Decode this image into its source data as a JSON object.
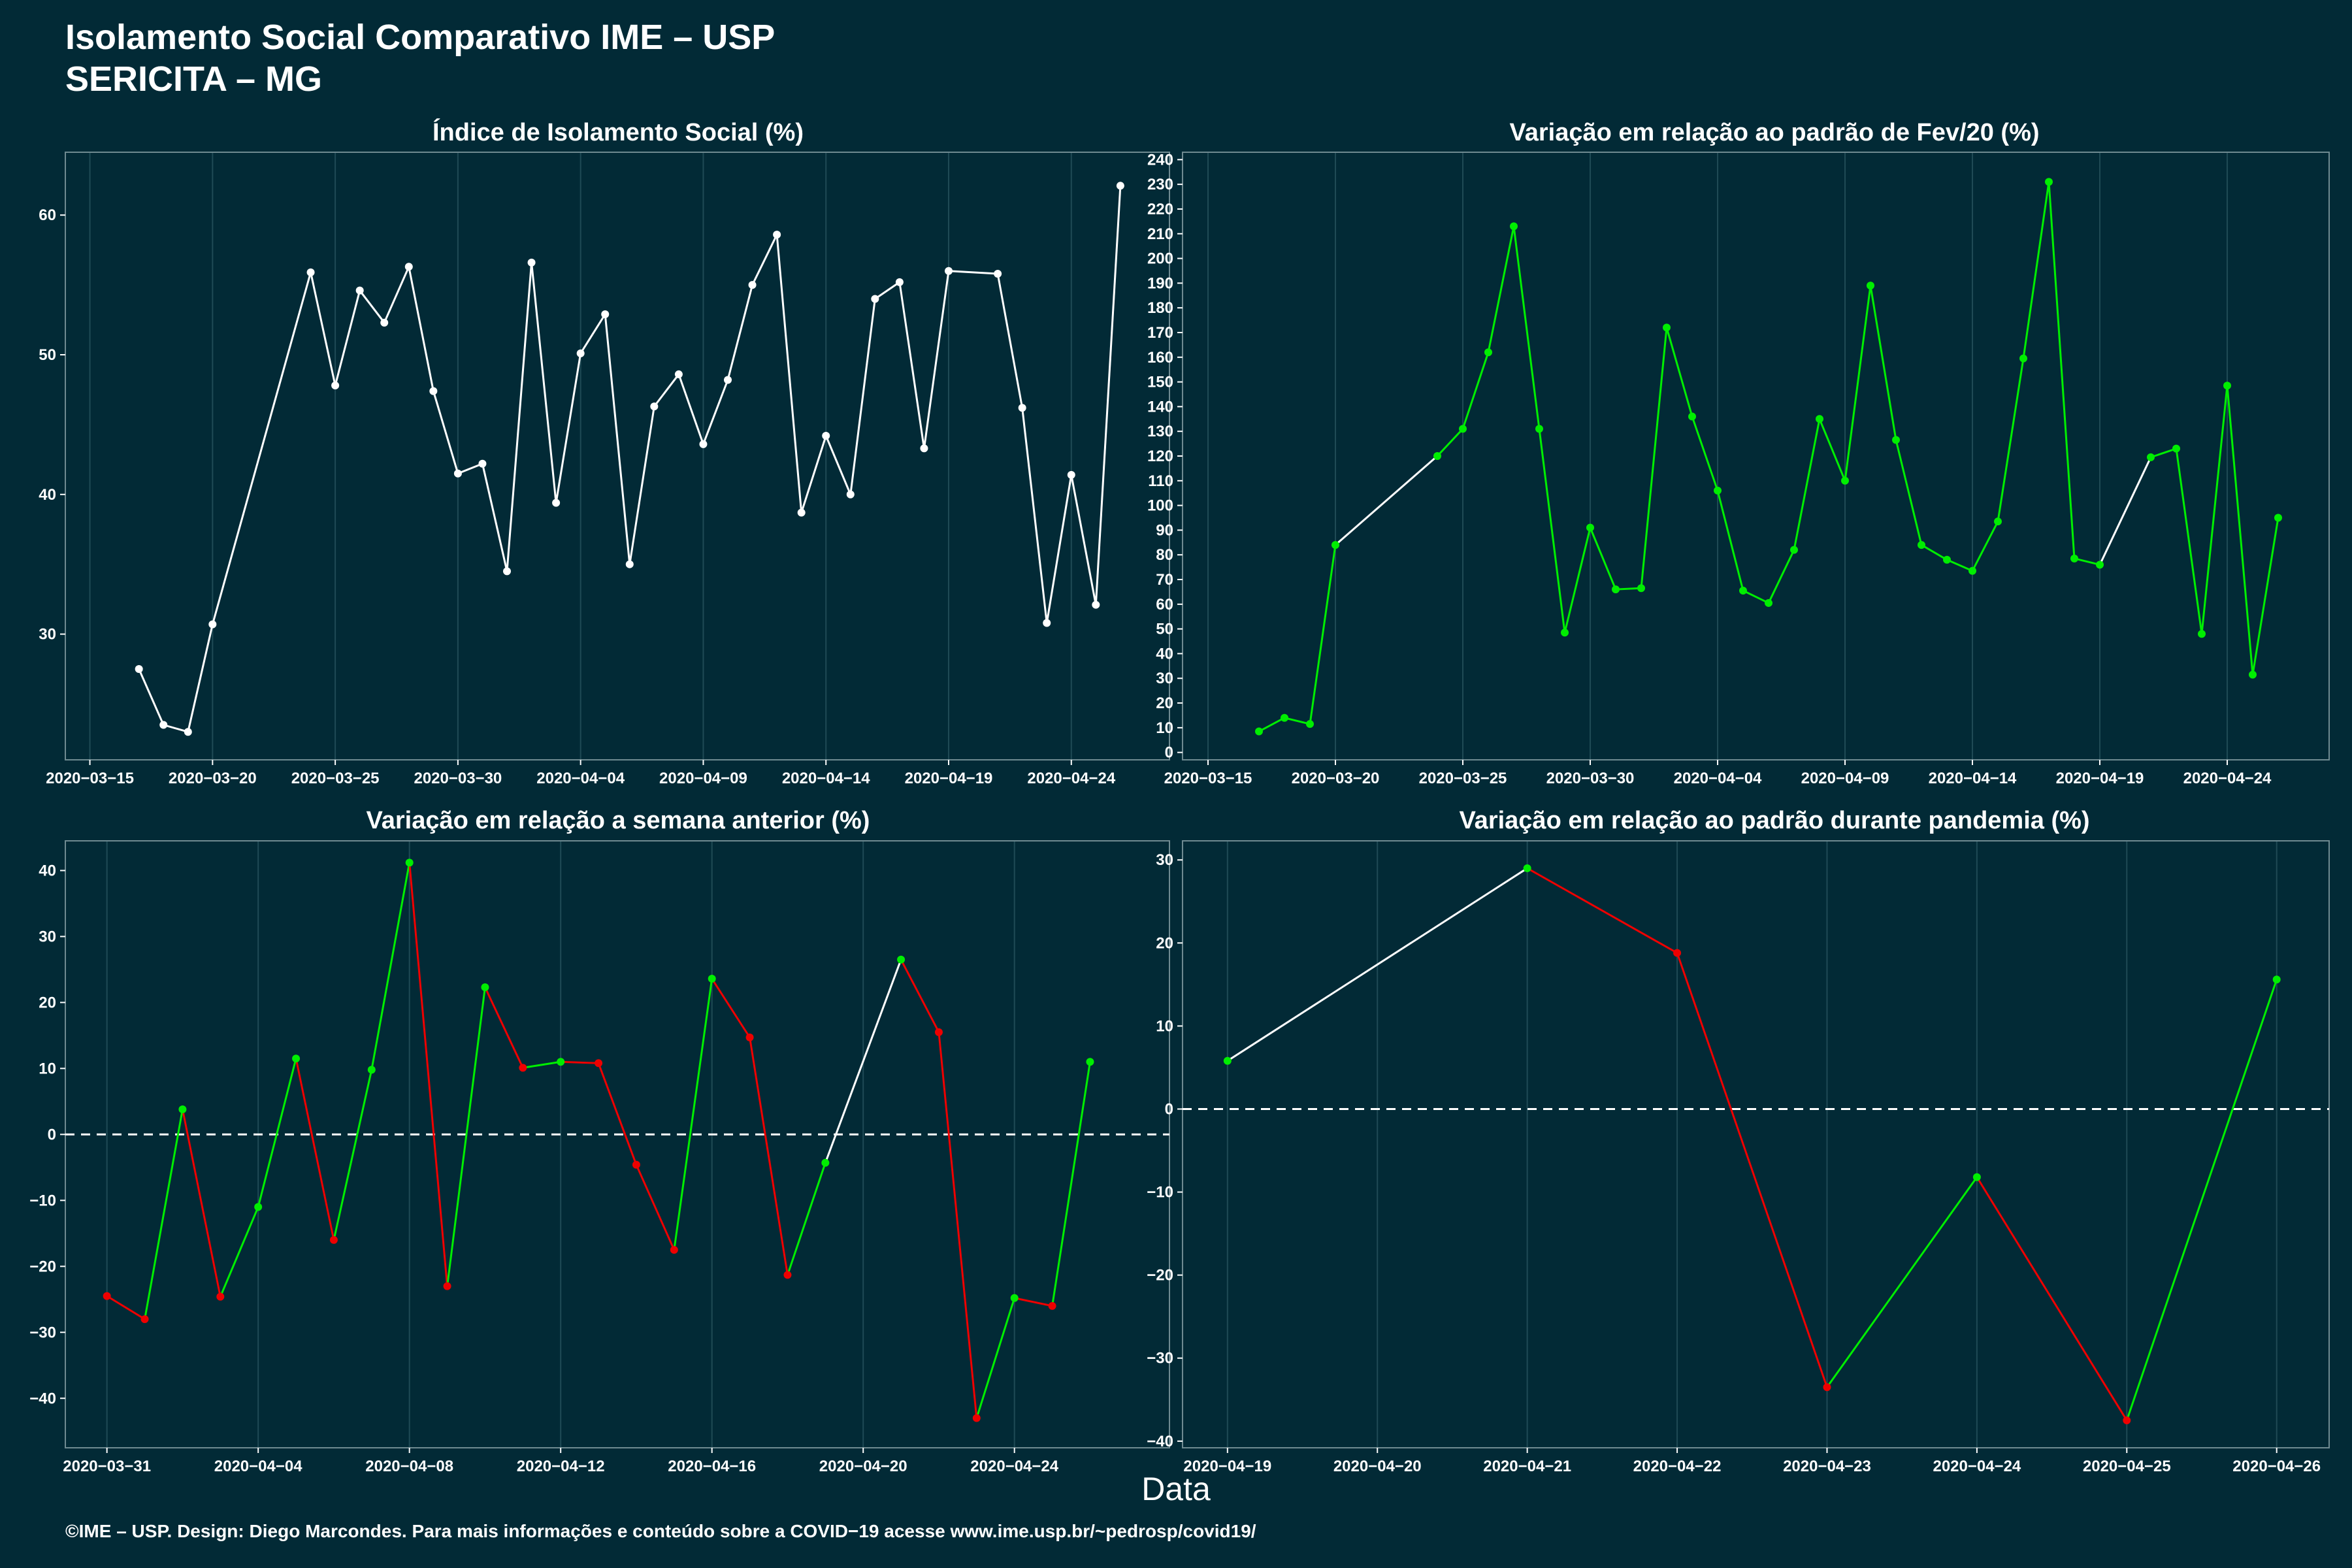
{
  "header": {
    "title_line1": "Isolamento Social Comparativo IME – USP",
    "title_line2": "SERICITA – MG"
  },
  "x_axis_label": "Data",
  "caption": "©IME – USP. Design: Diego Marcondes. Para mais informações e conteúdo sobre a COVID−19 acesse www.ime.usp.br/~pedrosp/covid19/",
  "colors": {
    "background": "#022a36",
    "grid": "#1f4a55",
    "white": "#ffffff",
    "green": "#00ee00",
    "red": "#ee0000"
  },
  "chart_data": [
    {
      "id": "p1",
      "type": "line",
      "title": "Índice de Isolamento Social (%)",
      "x_range": [
        "2020-03-14",
        "2020-04-28"
      ],
      "x_ticks": [
        "2020-03-15",
        "2020-03-20",
        "2020-03-25",
        "2020-03-30",
        "2020-04-04",
        "2020-04-09",
        "2020-04-14",
        "2020-04-19",
        "2020-04-24"
      ],
      "y_range": [
        21,
        64.5
      ],
      "y_ticks": [
        30,
        40,
        50,
        60
      ],
      "color_mode": "white",
      "points": [
        [
          "2020-03-17",
          27.5
        ],
        [
          "2020-03-18",
          23.5
        ],
        [
          "2020-03-19",
          23.0
        ],
        [
          "2020-03-20",
          30.7
        ],
        [
          "2020-03-24",
          55.9
        ],
        [
          "2020-03-25",
          47.8
        ],
        [
          "2020-03-26",
          54.6
        ],
        [
          "2020-03-27",
          52.3
        ],
        [
          "2020-03-28",
          56.3
        ],
        [
          "2020-03-29",
          47.4
        ],
        [
          "2020-03-30",
          41.5
        ],
        [
          "2020-03-31",
          42.2
        ],
        [
          "2020-04-01",
          34.5
        ],
        [
          "2020-04-02",
          56.6
        ],
        [
          "2020-04-03",
          39.4
        ],
        [
          "2020-04-04",
          50.1
        ],
        [
          "2020-04-05",
          52.9
        ],
        [
          "2020-04-06",
          35.0
        ],
        [
          "2020-04-07",
          46.3
        ],
        [
          "2020-04-08",
          48.6
        ],
        [
          "2020-04-09",
          43.6
        ],
        [
          "2020-04-10",
          48.2
        ],
        [
          "2020-04-11",
          55.0
        ],
        [
          "2020-04-12",
          58.6
        ],
        [
          "2020-04-13",
          38.7
        ],
        [
          "2020-04-14",
          44.2
        ],
        [
          "2020-04-15",
          40.0
        ],
        [
          "2020-04-16",
          54.0
        ],
        [
          "2020-04-17",
          55.2
        ],
        [
          "2020-04-18",
          43.3
        ],
        [
          "2020-04-19",
          56.0
        ],
        [
          "2020-04-21",
          55.8
        ],
        [
          "2020-04-22",
          46.2
        ],
        [
          "2020-04-23",
          30.8
        ],
        [
          "2020-04-24",
          41.4
        ],
        [
          "2020-04-25",
          32.1
        ],
        [
          "2020-04-26",
          62.1
        ]
      ]
    },
    {
      "id": "p2",
      "type": "line",
      "title": "Variação em relação ao padrão de Fev/20 (%)",
      "x_range": [
        "2020-03-14",
        "2020-04-28"
      ],
      "x_ticks": [
        "2020-03-15",
        "2020-03-20",
        "2020-03-25",
        "2020-03-30",
        "2020-04-04",
        "2020-04-09",
        "2020-04-14",
        "2020-04-19",
        "2020-04-24"
      ],
      "y_range": [
        -3,
        243
      ],
      "y_ticks": [
        0,
        10,
        20,
        30,
        40,
        50,
        60,
        70,
        80,
        90,
        100,
        110,
        120,
        130,
        140,
        150,
        160,
        170,
        180,
        190,
        200,
        210,
        220,
        230,
        240
      ],
      "color_mode": "green_gap_white",
      "points": [
        [
          "2020-03-17",
          8.5
        ],
        [
          "2020-03-18",
          14.0
        ],
        [
          "2020-03-19",
          11.5
        ],
        [
          "2020-03-20",
          84.0
        ],
        [
          "2020-03-24",
          120.0
        ],
        [
          "2020-03-25",
          131.0
        ],
        [
          "2020-03-26",
          162.0
        ],
        [
          "2020-03-27",
          213.0
        ],
        [
          "2020-03-28",
          131.0
        ],
        [
          "2020-03-29",
          48.5
        ],
        [
          "2020-03-30",
          91.0
        ],
        [
          "2020-03-31",
          66.0
        ],
        [
          "2020-04-01",
          66.5
        ],
        [
          "2020-04-02",
          172.0
        ],
        [
          "2020-04-03",
          136.0
        ],
        [
          "2020-04-04",
          106.0
        ],
        [
          "2020-04-05",
          65.5
        ],
        [
          "2020-04-06",
          60.5
        ],
        [
          "2020-04-07",
          82.0
        ],
        [
          "2020-04-08",
          135.0
        ],
        [
          "2020-04-09",
          110.0
        ],
        [
          "2020-04-10",
          189.0
        ],
        [
          "2020-04-11",
          126.5
        ],
        [
          "2020-04-12",
          84.0
        ],
        [
          "2020-04-13",
          78.0
        ],
        [
          "2020-04-14",
          73.5
        ],
        [
          "2020-04-15",
          93.5
        ],
        [
          "2020-04-16",
          159.5
        ],
        [
          "2020-04-17",
          231.0
        ],
        [
          "2020-04-18",
          78.5
        ],
        [
          "2020-04-19",
          76.0
        ],
        [
          "2020-04-21",
          119.5
        ],
        [
          "2020-04-22",
          123.0
        ],
        [
          "2020-04-23",
          48.0
        ],
        [
          "2020-04-24",
          148.5
        ],
        [
          "2020-04-25",
          31.5
        ],
        [
          "2020-04-26",
          95.0
        ]
      ]
    },
    {
      "id": "p3",
      "type": "line",
      "title": "Variação em relação a semana anterior (%)",
      "x_range": [
        "2020-03-29.9",
        "2020-04-28.1"
      ],
      "x_ticks": [
        "2020-03-31",
        "2020-04-04",
        "2020-04-08",
        "2020-04-12",
        "2020-04-16",
        "2020-04-20",
        "2020-04-24"
      ],
      "y_range": [
        -47.5,
        44.5
      ],
      "y_ticks": [
        -40,
        -30,
        -20,
        -10,
        0,
        10,
        20,
        30,
        40
      ],
      "zero_line": true,
      "color_mode": "sign",
      "points": [
        [
          "2020-03-31",
          -24.5
        ],
        [
          "2020-04-01",
          -28.0
        ],
        [
          "2020-04-02",
          3.8
        ],
        [
          "2020-04-03",
          -24.6
        ],
        [
          "2020-04-04",
          -11.0
        ],
        [
          "2020-04-05",
          11.5
        ],
        [
          "2020-04-06",
          -16.0
        ],
        [
          "2020-04-07",
          9.8
        ],
        [
          "2020-04-08",
          41.2
        ],
        [
          "2020-04-09",
          -23.0
        ],
        [
          "2020-04-10",
          22.3
        ],
        [
          "2020-04-11",
          10.1
        ],
        [
          "2020-04-12",
          11.0
        ],
        [
          "2020-04-13",
          10.8
        ],
        [
          "2020-04-14",
          -4.6
        ],
        [
          "2020-04-15",
          -17.5
        ],
        [
          "2020-04-16",
          23.6
        ],
        [
          "2020-04-17",
          14.7
        ],
        [
          "2020-04-18",
          -21.3
        ],
        [
          "2020-04-19",
          -4.3
        ],
        [
          "2020-04-21",
          26.5
        ],
        [
          "2020-04-22",
          15.5
        ],
        [
          "2020-04-23",
          -43.0
        ],
        [
          "2020-04-24",
          -24.8
        ],
        [
          "2020-04-25",
          -26.0
        ],
        [
          "2020-04-26",
          11.0
        ]
      ]
    },
    {
      "id": "p4",
      "type": "line",
      "title": "Variação em relação ao padrão durante pandemia (%)",
      "x_range": [
        "2020-04-18.7",
        "2020-04-26.35"
      ],
      "x_ticks": [
        "2020-04-19",
        "2020-04-20",
        "2020-04-21",
        "2020-04-22",
        "2020-04-23",
        "2020-04-24",
        "2020-04-25",
        "2020-04-26"
      ],
      "y_range": [
        -40.8,
        32.3
      ],
      "y_ticks": [
        -40,
        -30,
        -20,
        -10,
        0,
        10,
        20,
        30
      ],
      "zero_line": true,
      "color_mode": "sign",
      "points": [
        [
          "2020-04-19",
          5.8
        ],
        [
          "2020-04-21",
          29.0
        ],
        [
          "2020-04-22",
          18.8
        ],
        [
          "2020-04-23",
          -33.5
        ],
        [
          "2020-04-24",
          -8.2
        ],
        [
          "2020-04-25",
          -37.5
        ],
        [
          "2020-04-26",
          15.6
        ]
      ]
    }
  ]
}
